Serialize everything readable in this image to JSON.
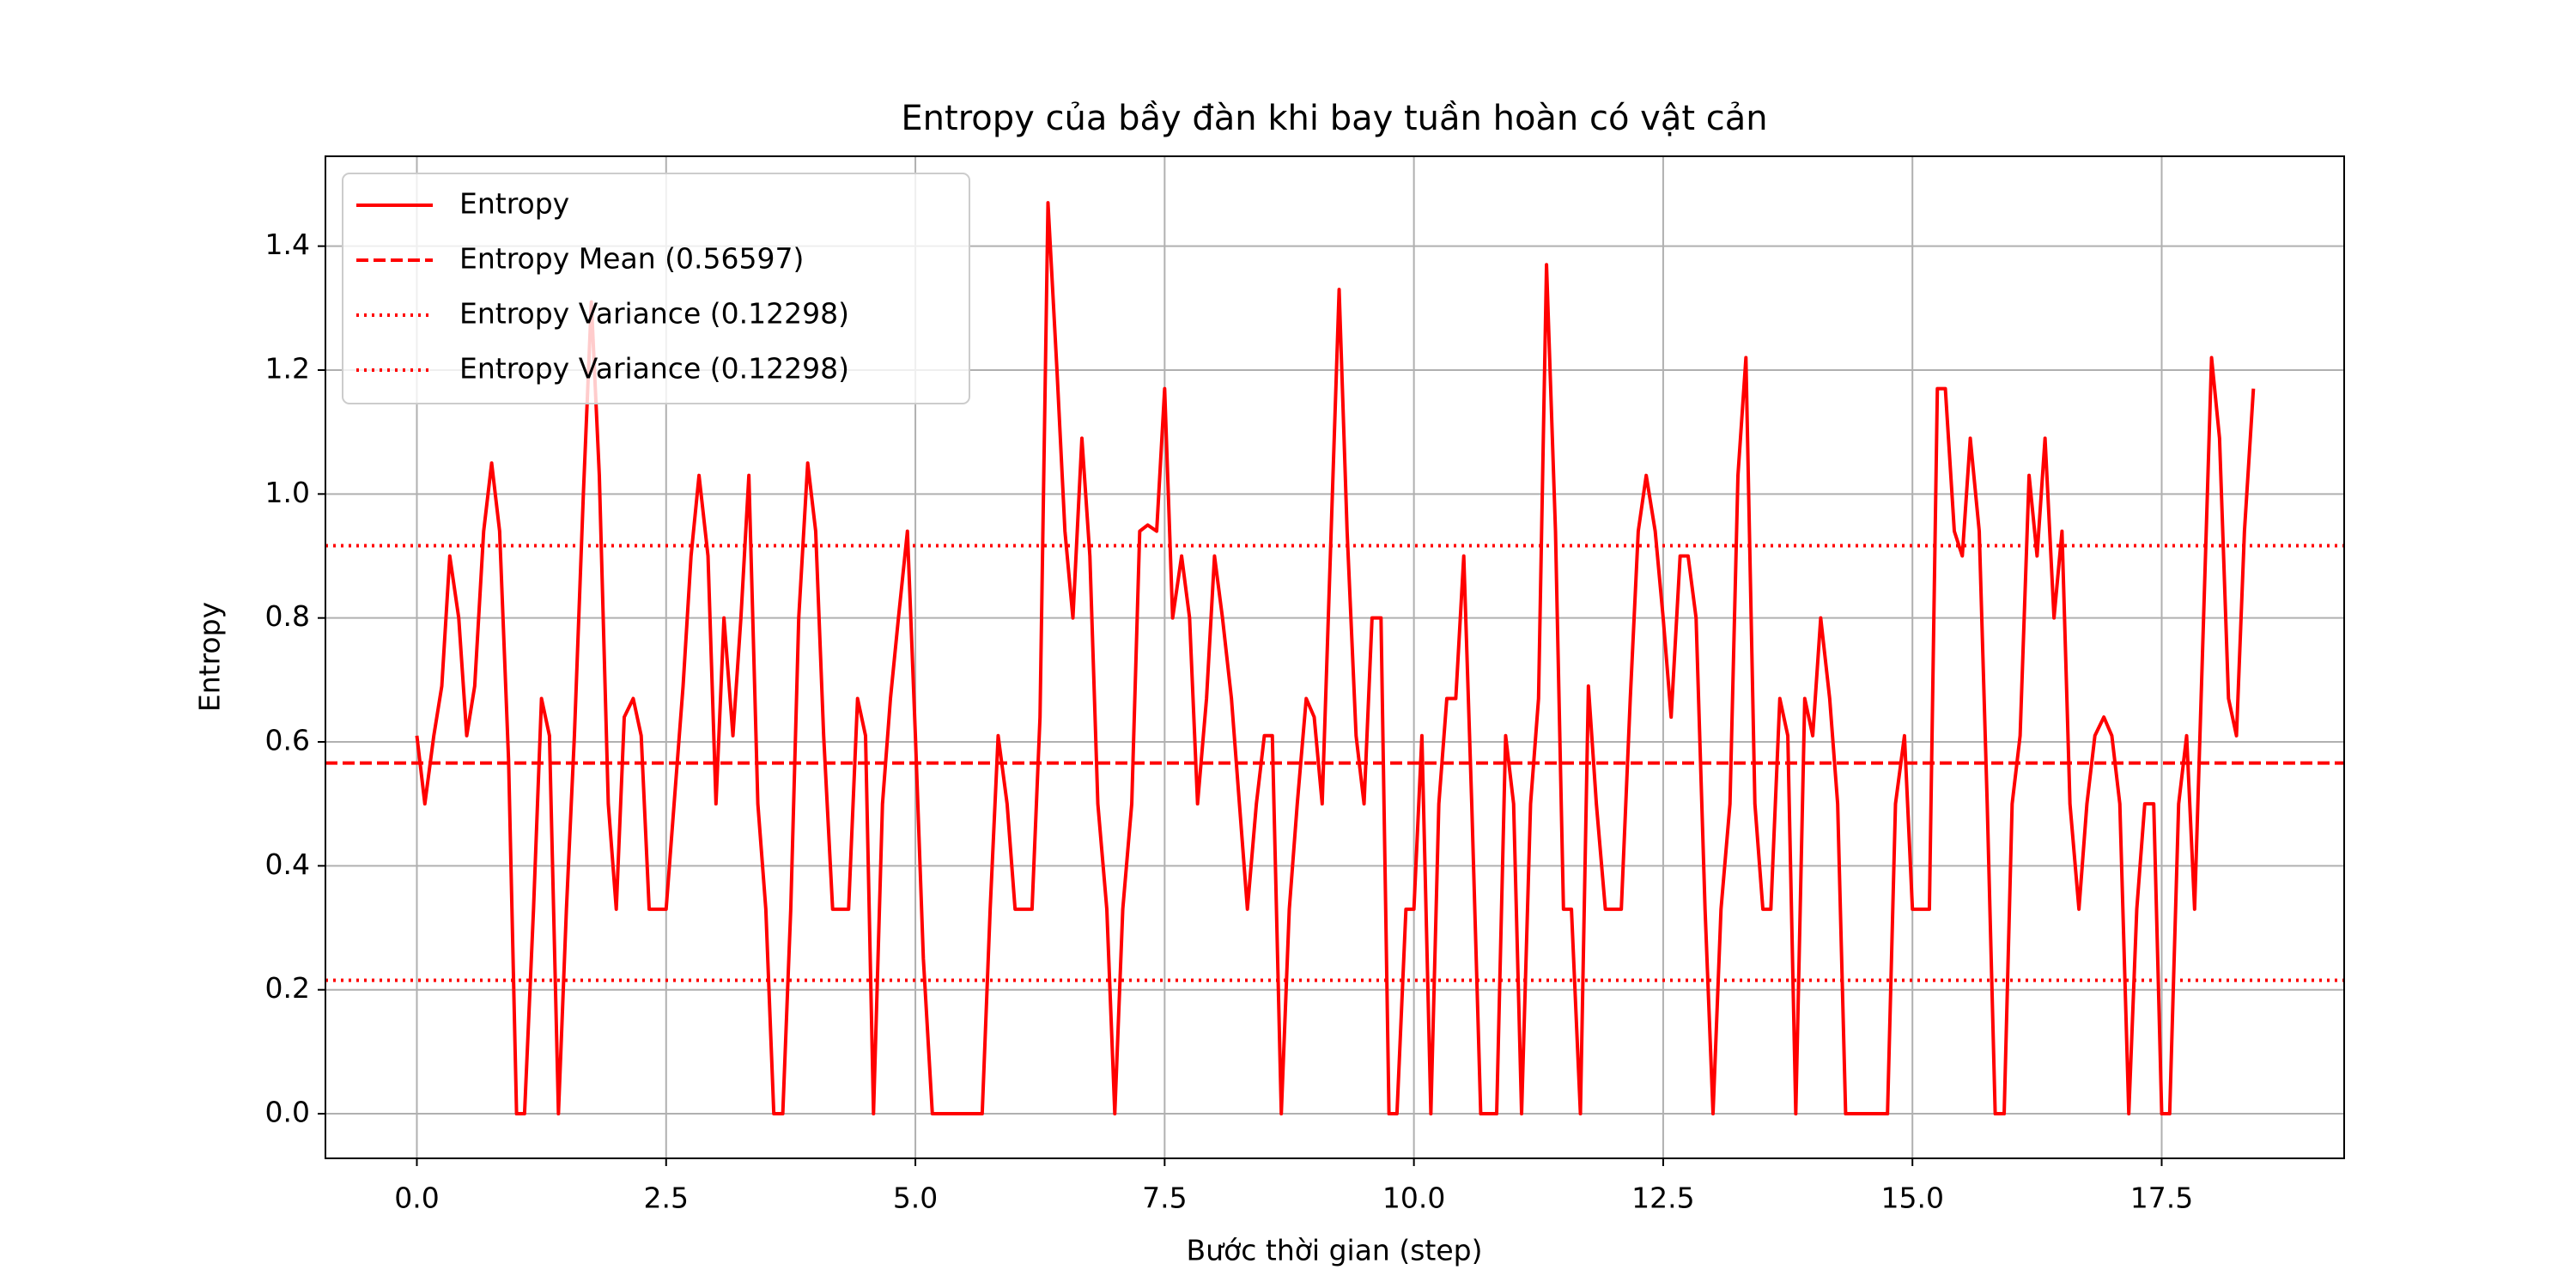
{
  "chart_data": {
    "type": "line",
    "title": "Entropy của bầy đàn khi bay tuần hoàn có vật cản",
    "x_label": "Bước thời gian (step)",
    "y_label": "Entropy",
    "x": [
      0,
      0.08,
      0.17,
      0.25,
      0.33,
      0.42,
      0.5,
      0.58,
      0.67,
      0.75,
      0.83,
      0.92,
      1,
      1.08,
      1.17,
      1.25,
      1.33,
      1.42,
      1.5,
      1.58,
      1.67,
      1.75,
      1.83,
      1.92,
      2,
      2.08,
      2.17,
      2.25,
      2.33,
      2.42,
      2.5,
      2.58,
      2.67,
      2.75,
      2.83,
      2.92,
      3,
      3.08,
      3.17,
      3.25,
      3.33,
      3.42,
      3.5,
      3.58,
      3.67,
      3.75,
      3.83,
      3.92,
      4,
      4.08,
      4.17,
      4.25,
      4.33,
      4.42,
      4.5,
      4.58,
      4.67,
      4.75,
      4.83,
      4.92,
      5,
      5.08,
      5.17,
      5.25,
      5.33,
      5.42,
      5.5,
      5.58,
      5.67,
      5.75,
      5.83,
      5.92,
      6,
      6.08,
      6.17,
      6.25,
      6.33,
      6.42,
      6.5,
      6.58,
      6.67,
      6.75,
      6.83,
      6.92,
      7,
      7.08,
      7.17,
      7.25,
      7.33,
      7.42,
      7.5,
      7.58,
      7.67,
      7.75,
      7.83,
      7.92,
      8,
      8.08,
      8.17,
      8.25,
      8.33,
      8.42,
      8.5,
      8.58,
      8.67,
      8.75,
      8.83,
      8.92,
      9,
      9.08,
      9.17,
      9.25,
      9.33,
      9.42,
      9.5,
      9.58,
      9.67,
      9.75,
      9.83,
      9.92,
      10,
      10.08,
      10.17,
      10.25,
      10.33,
      10.42,
      10.5,
      10.58,
      10.67,
      10.75,
      10.83,
      10.92,
      11,
      11.08,
      11.17,
      11.25,
      11.33,
      11.42,
      11.5,
      11.58,
      11.67,
      11.75,
      11.83,
      11.92,
      12,
      12.08,
      12.17,
      12.25,
      12.33,
      12.42,
      12.5,
      12.58,
      12.67,
      12.75,
      12.83,
      12.92,
      13,
      13.08,
      13.17,
      13.25,
      13.33,
      13.42,
      13.5,
      13.58,
      13.67,
      13.75,
      13.83,
      13.92,
      14,
      14.08,
      14.17,
      14.25,
      14.33,
      14.42,
      14.5,
      14.58,
      14.67,
      14.75,
      14.83,
      14.92,
      15,
      15.08,
      15.17,
      15.25,
      15.33,
      15.42,
      15.5,
      15.58,
      15.67,
      15.75,
      15.83,
      15.92,
      16,
      16.08,
      16.17,
      16.25,
      16.33,
      16.42,
      16.5,
      16.58,
      16.67,
      16.75,
      16.83,
      16.92,
      17,
      17.08,
      17.17,
      17.25,
      17.33,
      17.42,
      17.5,
      17.58,
      17.67,
      17.75,
      17.83,
      17.92,
      18,
      18.08,
      18.17,
      18.25,
      18.33,
      18.42
    ],
    "series": [
      {
        "name": "Entropy",
        "color": "#ff0000",
        "values": [
          0.61,
          0.5,
          0.61,
          0.69,
          0.9,
          0.8,
          0.61,
          0.69,
          0.94,
          1.05,
          0.94,
          0.57,
          0,
          0,
          0.33,
          0.67,
          0.61,
          0,
          0.33,
          0.61,
          1.0,
          1.31,
          1.03,
          0.5,
          0.33,
          0.64,
          0.67,
          0.61,
          0.33,
          0.33,
          0.33,
          0.5,
          0.69,
          0.9,
          1.03,
          0.9,
          0.5,
          0.8,
          0.61,
          0.8,
          1.03,
          0.5,
          0.33,
          0,
          0,
          0.33,
          0.8,
          1.05,
          0.94,
          0.61,
          0.33,
          0.33,
          0.33,
          0.67,
          0.61,
          0,
          0.5,
          0.67,
          0.8,
          0.94,
          0.61,
          0.25,
          0,
          0,
          0,
          0,
          0,
          0,
          0,
          0.33,
          0.61,
          0.5,
          0.33,
          0.33,
          0.33,
          0.64,
          1.47,
          1.2,
          0.94,
          0.8,
          1.09,
          0.9,
          0.5,
          0.33,
          0,
          0.33,
          0.5,
          0.94,
          0.95,
          0.94,
          1.17,
          0.8,
          0.9,
          0.8,
          0.5,
          0.67,
          0.9,
          0.8,
          0.67,
          0.5,
          0.33,
          0.5,
          0.61,
          0.61,
          0,
          0.33,
          0.5,
          0.67,
          0.64,
          0.5,
          0.94,
          1.33,
          0.94,
          0.61,
          0.5,
          0.8,
          0.8,
          0,
          0,
          0.33,
          0.33,
          0.61,
          0,
          0.5,
          0.67,
          0.67,
          0.9,
          0.5,
          0,
          0,
          0,
          0.61,
          0.5,
          0,
          0.5,
          0.67,
          1.37,
          0.94,
          0.33,
          0.33,
          0,
          0.69,
          0.5,
          0.33,
          0.33,
          0.33,
          0.67,
          0.94,
          1.03,
          0.94,
          0.8,
          0.64,
          0.9,
          0.9,
          0.8,
          0.33,
          0,
          0.33,
          0.5,
          1.03,
          1.22,
          0.5,
          0.33,
          0.33,
          0.67,
          0.61,
          0,
          0.67,
          0.61,
          0.8,
          0.67,
          0.5,
          0,
          0,
          0,
          0,
          0,
          0,
          0.5,
          0.61,
          0.33,
          0.33,
          0.33,
          1.17,
          1.17,
          0.94,
          0.9,
          1.09,
          0.94,
          0.5,
          0,
          0,
          0.5,
          0.61,
          1.03,
          0.9,
          1.09,
          0.8,
          0.94,
          0.5,
          0.33,
          0.5,
          0.61,
          0.64,
          0.61,
          0.5,
          0,
          0.33,
          0.5,
          0.5,
          0,
          0,
          0.5,
          0.61,
          0.33,
          0.8,
          1.22,
          1.09,
          0.67,
          0.61,
          0.94,
          1.17
        ]
      }
    ],
    "hlines": [
      {
        "label": "Entropy Mean (0.56597)",
        "value": 0.56597,
        "color": "#ff0000",
        "style": "dashed"
      },
      {
        "label": "Entropy Variance (0.12298)",
        "value": 0.9167,
        "color": "#ff0000",
        "style": "dotted"
      },
      {
        "label": "Entropy Variance (0.12298)",
        "value": 0.2153,
        "color": "#ff0000",
        "style": "dotted"
      }
    ],
    "xlim": [
      -0.917,
      19.33
    ],
    "ylim": [
      -0.072,
      1.545
    ],
    "xticks": [
      {
        "value": 0,
        "label": "0.0"
      },
      {
        "value": 2.5,
        "label": "2.5"
      },
      {
        "value": 5,
        "label": "5.0"
      },
      {
        "value": 7.5,
        "label": "7.5"
      },
      {
        "value": 10,
        "label": "10.0"
      },
      {
        "value": 12.5,
        "label": "12.5"
      },
      {
        "value": 15,
        "label": "15.0"
      },
      {
        "value": 17.5,
        "label": "17.5"
      }
    ],
    "yticks": [
      {
        "value": 0,
        "label": "0.0"
      },
      {
        "value": 0.2,
        "label": "0.2"
      },
      {
        "value": 0.4,
        "label": "0.4"
      },
      {
        "value": 0.6,
        "label": "0.6"
      },
      {
        "value": 0.8,
        "label": "0.8"
      },
      {
        "value": 1,
        "label": "1.0"
      },
      {
        "value": 1.2,
        "label": "1.2"
      },
      {
        "value": 1.4,
        "label": "1.4"
      }
    ],
    "grid": true,
    "legend": "upper left"
  }
}
